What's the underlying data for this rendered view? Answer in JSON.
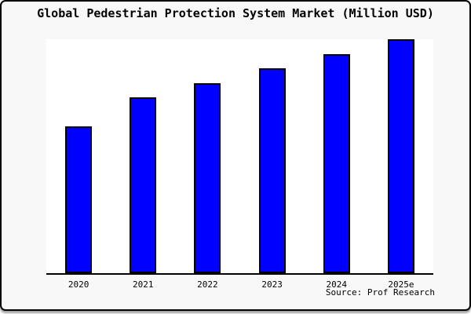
{
  "chart_data": {
    "type": "bar",
    "title": "Global Pedestrian Protection System Market (Million USD)",
    "categories": [
      "2020",
      "2021",
      "2022",
      "2023",
      "2024",
      "2025e"
    ],
    "values": [
      62.8,
      75.2,
      81.2,
      87.6,
      93.6,
      100
    ],
    "values_note": "relative bar heights as percent of tallest bar; chart shows no y-axis scale, ticks or gridlines",
    "xlabel": "",
    "ylabel": "",
    "ylim": [
      0,
      100
    ],
    "grid": false,
    "legend": false,
    "y_axis_ticks": [],
    "source": "Source: Prof Research",
    "colors": {
      "bar_fill": "#0000ff",
      "bar_border": "#000000",
      "plot_background": "#ffffff",
      "frame_background": "#f8f8f8",
      "axis_line": "#000000",
      "text": "#000000"
    }
  }
}
